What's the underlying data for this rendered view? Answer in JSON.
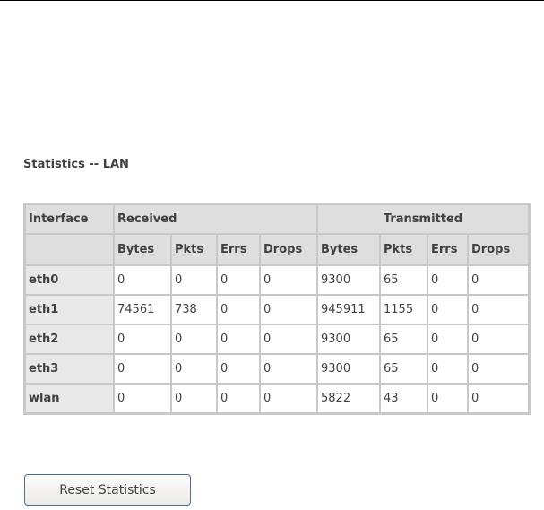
{
  "title": "Statistics -- LAN",
  "table": {
    "headers": {
      "interface": "Interface",
      "received": "Received",
      "transmitted": "Transmitted"
    },
    "subheaders": [
      "Bytes",
      "Pkts",
      "Errs",
      "Drops",
      "Bytes",
      "Pkts",
      "Errs",
      "Drops"
    ],
    "rows": [
      {
        "name": "eth0",
        "values": [
          "0",
          "0",
          "0",
          "0",
          "9300",
          "65",
          "0",
          "0"
        ]
      },
      {
        "name": "eth1",
        "values": [
          "74561",
          "738",
          "0",
          "0",
          "945911",
          "1155",
          "0",
          "0"
        ]
      },
      {
        "name": "eth2",
        "values": [
          "0",
          "0",
          "0",
          "0",
          "9300",
          "65",
          "0",
          "0"
        ]
      },
      {
        "name": "eth3",
        "values": [
          "0",
          "0",
          "0",
          "0",
          "9300",
          "65",
          "0",
          "0"
        ]
      },
      {
        "name": "wlan",
        "values": [
          "0",
          "0",
          "0",
          "0",
          "5822",
          "43",
          "0",
          "0"
        ]
      }
    ]
  },
  "reset_button": "Reset Statistics"
}
